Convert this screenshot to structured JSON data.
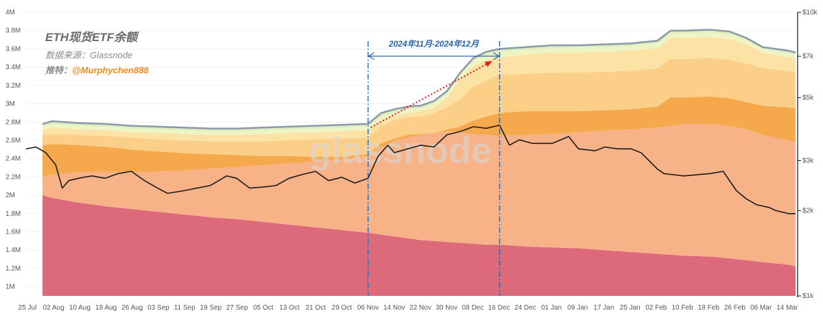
{
  "header": {
    "title": "ETH现货ETF余额",
    "source": "数据来源：Glassnode",
    "twitter_label": "推特：",
    "twitter_handle": "@Murphychen888"
  },
  "watermark": "glassnode",
  "colors": {
    "band1": "#dc6a7b",
    "band2": "#f7b287",
    "band3": "#f6a84c",
    "band4": "#fbcf87",
    "band5": "#fce2a5",
    "band6": "#eef4c3",
    "band7": "#dcedc0",
    "top_outline": "#8b98a6",
    "price": "#1a1a1a",
    "arrow": "#e02020",
    "period": "#2b63a8"
  },
  "chart_data": {
    "type": "area",
    "title": "ETH现货ETF余额",
    "x_tick_labels": [
      "25 Jul",
      "02 Aug",
      "10 Aug",
      "18 Aug",
      "26 Aug",
      "03 Sep",
      "11 Sep",
      "19 Sep",
      "27 Sep",
      "05 Oct",
      "13 Oct",
      "21 Oct",
      "29 Oct",
      "06 Nov",
      "14 Nov",
      "22 Nov",
      "30 Nov",
      "08 Dec",
      "16 Dec",
      "24 Dec",
      "01 Jan",
      "09 Jan",
      "17 Jan",
      "25 Jan",
      "02 Feb",
      "10 Feb",
      "18 Feb",
      "26 Feb",
      "06 Mar",
      "14 Mar"
    ],
    "y_left_ticks": [
      "1M",
      "1.2M",
      "1.4M",
      "1.6M",
      "1.8M",
      "2M",
      "2.2M",
      "2.4M",
      "2.6M",
      "2.8M",
      "3M",
      "3.2M",
      "3.4M",
      "3.6M",
      "3.8M",
      "4M"
    ],
    "y_left_range": [
      0.9,
      4.0
    ],
    "y_right_ticks": [
      "$1k",
      "$2k",
      "$3k",
      "$5k",
      "$7k",
      "$10k"
    ],
    "y_right_range_usd": [
      1000,
      10000
    ],
    "y_right_scale": "log",
    "x_start": "2024-07-25",
    "x_end": "2025-03-16",
    "balance_series": {
      "dates": [
        "2024-07-30",
        "2024-08-02",
        "2024-08-10",
        "2024-08-18",
        "2024-08-26",
        "2024-09-03",
        "2024-09-11",
        "2024-09-19",
        "2024-09-27",
        "2024-10-05",
        "2024-10-13",
        "2024-10-21",
        "2024-10-29",
        "2024-11-06",
        "2024-11-10",
        "2024-11-14",
        "2024-11-18",
        "2024-11-22",
        "2024-11-26",
        "2024-11-30",
        "2024-12-04",
        "2024-12-08",
        "2024-12-12",
        "2024-12-16",
        "2024-12-20",
        "2024-12-24",
        "2025-01-01",
        "2025-01-09",
        "2025-01-17",
        "2025-01-25",
        "2025-02-02",
        "2025-02-06",
        "2025-02-10",
        "2025-02-18",
        "2025-02-24",
        "2025-03-01",
        "2025-03-06",
        "2025-03-14",
        "2025-03-16"
      ],
      "layers": [
        {
          "values": [
            2.0,
            1.97,
            1.92,
            1.88,
            1.85,
            1.82,
            1.79,
            1.76,
            1.74,
            1.71,
            1.68,
            1.65,
            1.62,
            1.59,
            1.57,
            1.55,
            1.53,
            1.51,
            1.5,
            1.49,
            1.48,
            1.47,
            1.46,
            1.46,
            1.45,
            1.44,
            1.43,
            1.42,
            1.4,
            1.38,
            1.36,
            1.35,
            1.34,
            1.33,
            1.31,
            1.29,
            1.27,
            1.24,
            1.22
          ]
        },
        {
          "values": [
            2.2,
            2.23,
            2.25,
            2.26,
            2.25,
            2.26,
            2.27,
            2.29,
            2.31,
            2.33,
            2.35,
            2.37,
            2.39,
            2.44,
            2.52,
            2.6,
            2.63,
            2.66,
            2.68,
            2.7,
            2.69,
            2.67,
            2.66,
            2.65,
            2.66,
            2.66,
            2.67,
            2.69,
            2.71,
            2.72,
            2.74,
            2.76,
            2.78,
            2.78,
            2.76,
            2.72,
            2.66,
            2.6,
            2.58
          ]
        },
        {
          "values": [
            2.55,
            2.56,
            2.55,
            2.53,
            2.5,
            2.48,
            2.46,
            2.45,
            2.44,
            2.43,
            2.43,
            2.42,
            2.42,
            2.45,
            2.57,
            2.62,
            2.66,
            2.67,
            2.68,
            2.72,
            2.75,
            2.82,
            2.86,
            2.9,
            2.91,
            2.92,
            2.92,
            2.92,
            2.93,
            2.94,
            2.97,
            3.07,
            3.07,
            3.08,
            3.06,
            3.02,
            2.98,
            2.96,
            2.95
          ]
        },
        {
          "values": [
            2.66,
            2.67,
            2.66,
            2.65,
            2.63,
            2.61,
            2.6,
            2.59,
            2.59,
            2.59,
            2.6,
            2.61,
            2.62,
            2.63,
            2.76,
            2.82,
            2.86,
            2.86,
            2.9,
            2.96,
            3.05,
            3.19,
            3.26,
            3.32,
            3.32,
            3.33,
            3.34,
            3.34,
            3.35,
            3.36,
            3.39,
            3.49,
            3.49,
            3.5,
            3.48,
            3.44,
            3.39,
            3.36,
            3.35
          ]
        },
        {
          "values": [
            2.72,
            2.74,
            2.72,
            2.71,
            2.69,
            2.68,
            2.67,
            2.66,
            2.66,
            2.67,
            2.68,
            2.69,
            2.7,
            2.71,
            2.82,
            2.87,
            2.9,
            2.92,
            2.96,
            3.07,
            3.27,
            3.41,
            3.48,
            3.51,
            3.52,
            3.54,
            3.56,
            3.56,
            3.57,
            3.58,
            3.61,
            3.72,
            3.72,
            3.73,
            3.71,
            3.65,
            3.56,
            3.51,
            3.49
          ]
        },
        {
          "values": [
            2.76,
            2.78,
            2.76,
            2.75,
            2.73,
            2.72,
            2.71,
            2.7,
            2.7,
            2.71,
            2.72,
            2.73,
            2.74,
            2.75,
            2.86,
            2.91,
            2.94,
            2.95,
            3.0,
            3.11,
            3.32,
            3.47,
            3.54,
            3.57,
            3.58,
            3.59,
            3.61,
            3.62,
            3.62,
            3.63,
            3.66,
            3.77,
            3.77,
            3.78,
            3.76,
            3.7,
            3.6,
            3.55,
            3.53
          ]
        },
        {
          "values": [
            2.78,
            2.81,
            2.79,
            2.78,
            2.76,
            2.75,
            2.74,
            2.73,
            2.73,
            2.74,
            2.75,
            2.76,
            2.77,
            2.78,
            2.9,
            2.94,
            2.97,
            2.98,
            3.03,
            3.14,
            3.34,
            3.5,
            3.57,
            3.6,
            3.61,
            3.62,
            3.64,
            3.64,
            3.65,
            3.66,
            3.69,
            3.8,
            3.8,
            3.81,
            3.79,
            3.72,
            3.62,
            3.58,
            3.56
          ]
        }
      ]
    },
    "price_series": {
      "name": "ETH price",
      "dates": [
        "2024-07-25",
        "2024-07-28",
        "2024-07-31",
        "2024-08-03",
        "2024-08-05",
        "2024-08-07",
        "2024-08-10",
        "2024-08-14",
        "2024-08-18",
        "2024-08-22",
        "2024-08-26",
        "2024-08-30",
        "2024-09-03",
        "2024-09-06",
        "2024-09-11",
        "2024-09-15",
        "2024-09-19",
        "2024-09-24",
        "2024-09-27",
        "2024-10-01",
        "2024-10-05",
        "2024-10-09",
        "2024-10-13",
        "2024-10-17",
        "2024-10-21",
        "2024-10-25",
        "2024-10-29",
        "2024-11-02",
        "2024-11-06",
        "2024-11-09",
        "2024-11-12",
        "2024-11-14",
        "2024-11-18",
        "2024-11-22",
        "2024-11-26",
        "2024-11-30",
        "2024-12-04",
        "2024-12-08",
        "2024-12-12",
        "2024-12-16",
        "2024-12-19",
        "2024-12-22",
        "2024-12-26",
        "2025-01-01",
        "2025-01-06",
        "2025-01-09",
        "2025-01-14",
        "2025-01-17",
        "2025-01-21",
        "2025-01-25",
        "2025-01-28",
        "2025-02-02",
        "2025-02-04",
        "2025-02-10",
        "2025-02-18",
        "2025-02-22",
        "2025-02-26",
        "2025-03-01",
        "2025-03-04",
        "2025-03-08",
        "2025-03-10",
        "2025-03-14",
        "2025-03-16"
      ],
      "values_usd": [
        3300,
        3350,
        3200,
        2900,
        2400,
        2550,
        2600,
        2650,
        2600,
        2700,
        2750,
        2550,
        2400,
        2300,
        2350,
        2400,
        2450,
        2650,
        2600,
        2400,
        2420,
        2450,
        2600,
        2680,
        2750,
        2550,
        2620,
        2500,
        2600,
        3100,
        3400,
        3200,
        3300,
        3400,
        3350,
        3700,
        3800,
        3950,
        3900,
        4000,
        3400,
        3550,
        3450,
        3450,
        3650,
        3300,
        3250,
        3350,
        3300,
        3300,
        3200,
        2800,
        2700,
        2650,
        2700,
        2750,
        2350,
        2200,
        2100,
        2050,
        2000,
        1950,
        1950
      ]
    },
    "annotations": {
      "period_label": "2024年11月-2024年12月",
      "period_start": "2024-11-06",
      "period_end": "2024-12-16"
    }
  }
}
